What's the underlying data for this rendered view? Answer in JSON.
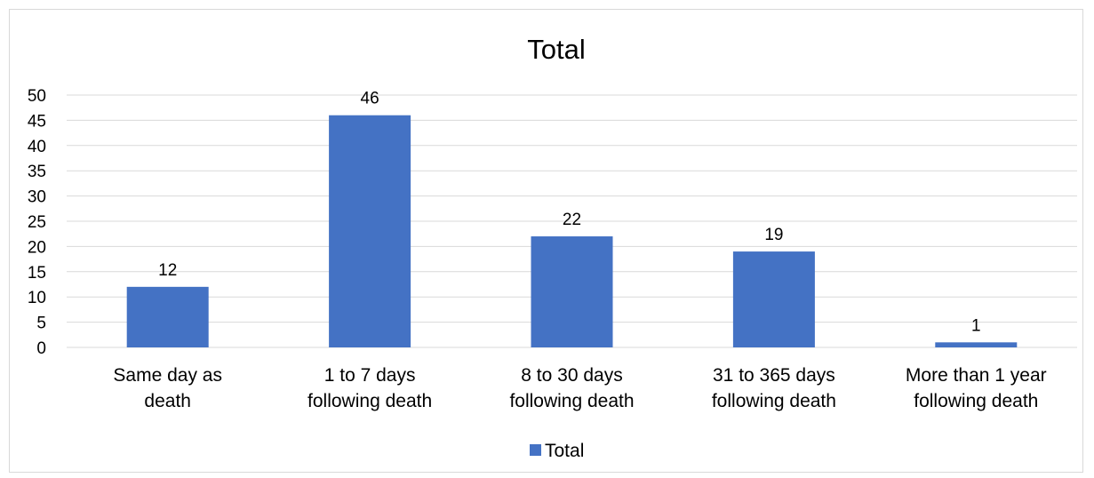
{
  "colors": {
    "bar": "#4472c4",
    "grid": "#d9d9d9",
    "frame": "#d9d9d9"
  },
  "chart_data": {
    "type": "bar",
    "title": "Total",
    "xlabel": "",
    "ylabel": "",
    "categories": [
      [
        "Same day as",
        "death"
      ],
      [
        "1 to 7 days",
        "following death"
      ],
      [
        "8 to 30 days",
        "following death"
      ],
      [
        "31 to 365 days",
        "following death"
      ],
      [
        "More than 1 year",
        "following death"
      ]
    ],
    "series": [
      {
        "name": "Total",
        "values": [
          12,
          46,
          22,
          19,
          1
        ]
      }
    ],
    "ylim": [
      0,
      50
    ],
    "yticks": [
      0,
      5,
      10,
      15,
      20,
      25,
      30,
      35,
      40,
      45,
      50
    ],
    "grid": true,
    "data_labels": true,
    "legend": "bottom"
  }
}
